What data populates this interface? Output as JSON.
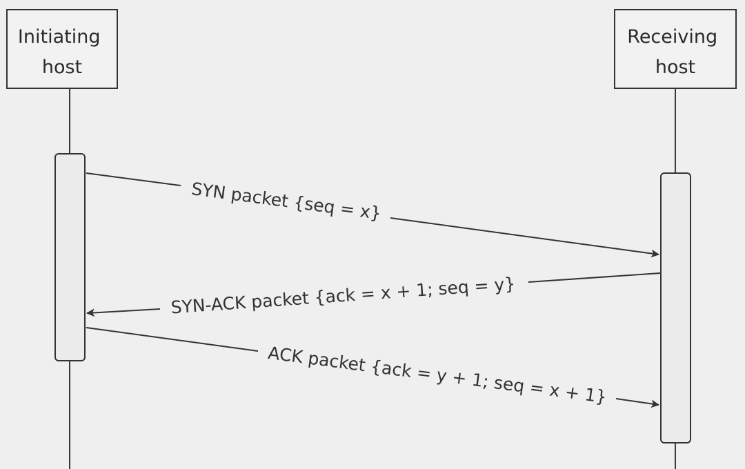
{
  "diagram": {
    "type": "sequence",
    "participants": [
      {
        "id": "initiating",
        "lines": [
          "Initiating",
          "host"
        ]
      },
      {
        "id": "receiving",
        "lines": [
          "Receiving",
          "host"
        ]
      }
    ],
    "messages": [
      {
        "from": "initiating",
        "to": "receiving",
        "label": "SYN packet {seq = x}"
      },
      {
        "from": "receiving",
        "to": "initiating",
        "label": "SYN-ACK packet {ack = x + 1; seq = y}"
      },
      {
        "from": "initiating",
        "to": "receiving",
        "label": "ACK packet {ack = y + 1; seq = x + 1}"
      }
    ]
  },
  "colors": {
    "background": "#efefef",
    "line": "#3a3a3a",
    "box_fill": "#f2f2f2",
    "activation_fill": "#ececec"
  }
}
